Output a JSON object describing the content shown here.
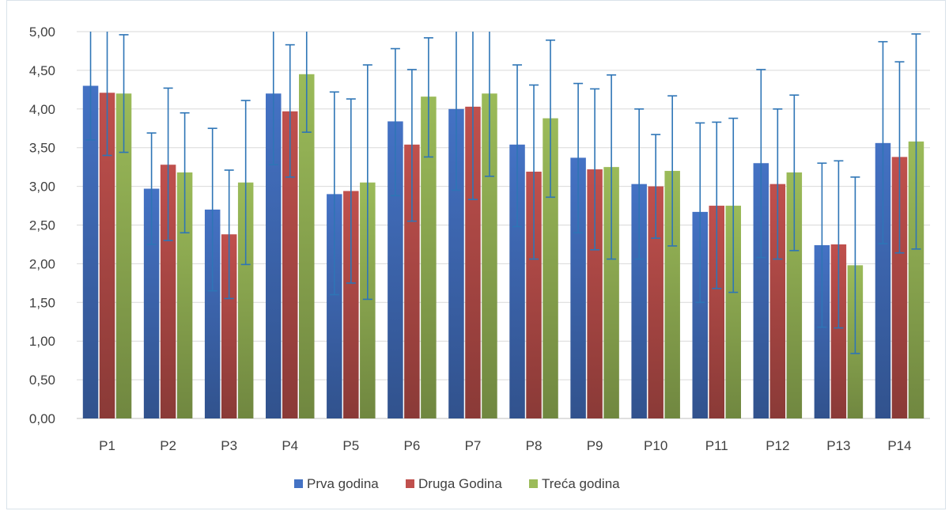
{
  "chart_data": {
    "type": "bar",
    "title": "",
    "xlabel": "",
    "ylabel": "",
    "categories": [
      "P1",
      "P2",
      "P3",
      "P4",
      "P5",
      "P6",
      "P7",
      "P8",
      "P9",
      "P10",
      "P11",
      "P12",
      "P13",
      "P14"
    ],
    "ylim": [
      0,
      5
    ],
    "yticks": [
      "0,00",
      "0,50",
      "1,00",
      "1,50",
      "2,00",
      "2,50",
      "3,00",
      "3,50",
      "4,00",
      "4,50",
      "5,00"
    ],
    "grid": true,
    "legend_position": "bottom",
    "error_bars": true,
    "series": [
      {
        "name": "Prva godina",
        "color": "#4472c4",
        "values": [
          4.3,
          2.97,
          2.7,
          4.2,
          2.9,
          3.84,
          4.0,
          3.54,
          3.37,
          3.03,
          2.67,
          3.3,
          2.24,
          3.56
        ],
        "error_low": [
          3.6,
          2.25,
          1.65,
          3.28,
          1.6,
          2.88,
          2.95,
          2.48,
          2.4,
          2.06,
          1.5,
          2.08,
          1.18,
          2.26
        ],
        "error_high": [
          5.0,
          3.69,
          3.75,
          5.0,
          4.22,
          4.78,
          5.0,
          4.57,
          4.33,
          4.0,
          3.82,
          4.51,
          3.3,
          4.87
        ]
      },
      {
        "name": "Druga Godina",
        "color": "#c0504d",
        "values": [
          4.21,
          3.28,
          2.38,
          3.97,
          2.94,
          3.54,
          4.03,
          3.19,
          3.22,
          3.0,
          2.75,
          3.03,
          2.25,
          3.38
        ],
        "error_low": [
          3.4,
          2.3,
          1.55,
          3.12,
          1.75,
          2.55,
          2.83,
          2.06,
          2.18,
          2.33,
          1.68,
          2.06,
          1.17,
          2.14
        ],
        "error_high": [
          5.0,
          4.27,
          3.21,
          4.83,
          4.13,
          4.51,
          5.0,
          4.31,
          4.26,
          3.67,
          3.83,
          4.0,
          3.33,
          4.61
        ]
      },
      {
        "name": "Treća godina",
        "color": "#9bbb59",
        "values": [
          4.2,
          3.18,
          3.05,
          4.45,
          3.05,
          4.16,
          4.2,
          3.88,
          3.25,
          3.2,
          2.75,
          3.18,
          1.98,
          3.58
        ],
        "error_low": [
          3.44,
          2.4,
          1.99,
          3.7,
          1.54,
          3.38,
          3.13,
          2.86,
          2.06,
          2.23,
          1.63,
          2.17,
          0.84,
          2.19
        ],
        "error_high": [
          4.96,
          3.95,
          4.11,
          5.0,
          4.57,
          4.92,
          5.0,
          4.89,
          4.44,
          4.17,
          3.88,
          4.18,
          3.12,
          4.97
        ]
      }
    ]
  }
}
